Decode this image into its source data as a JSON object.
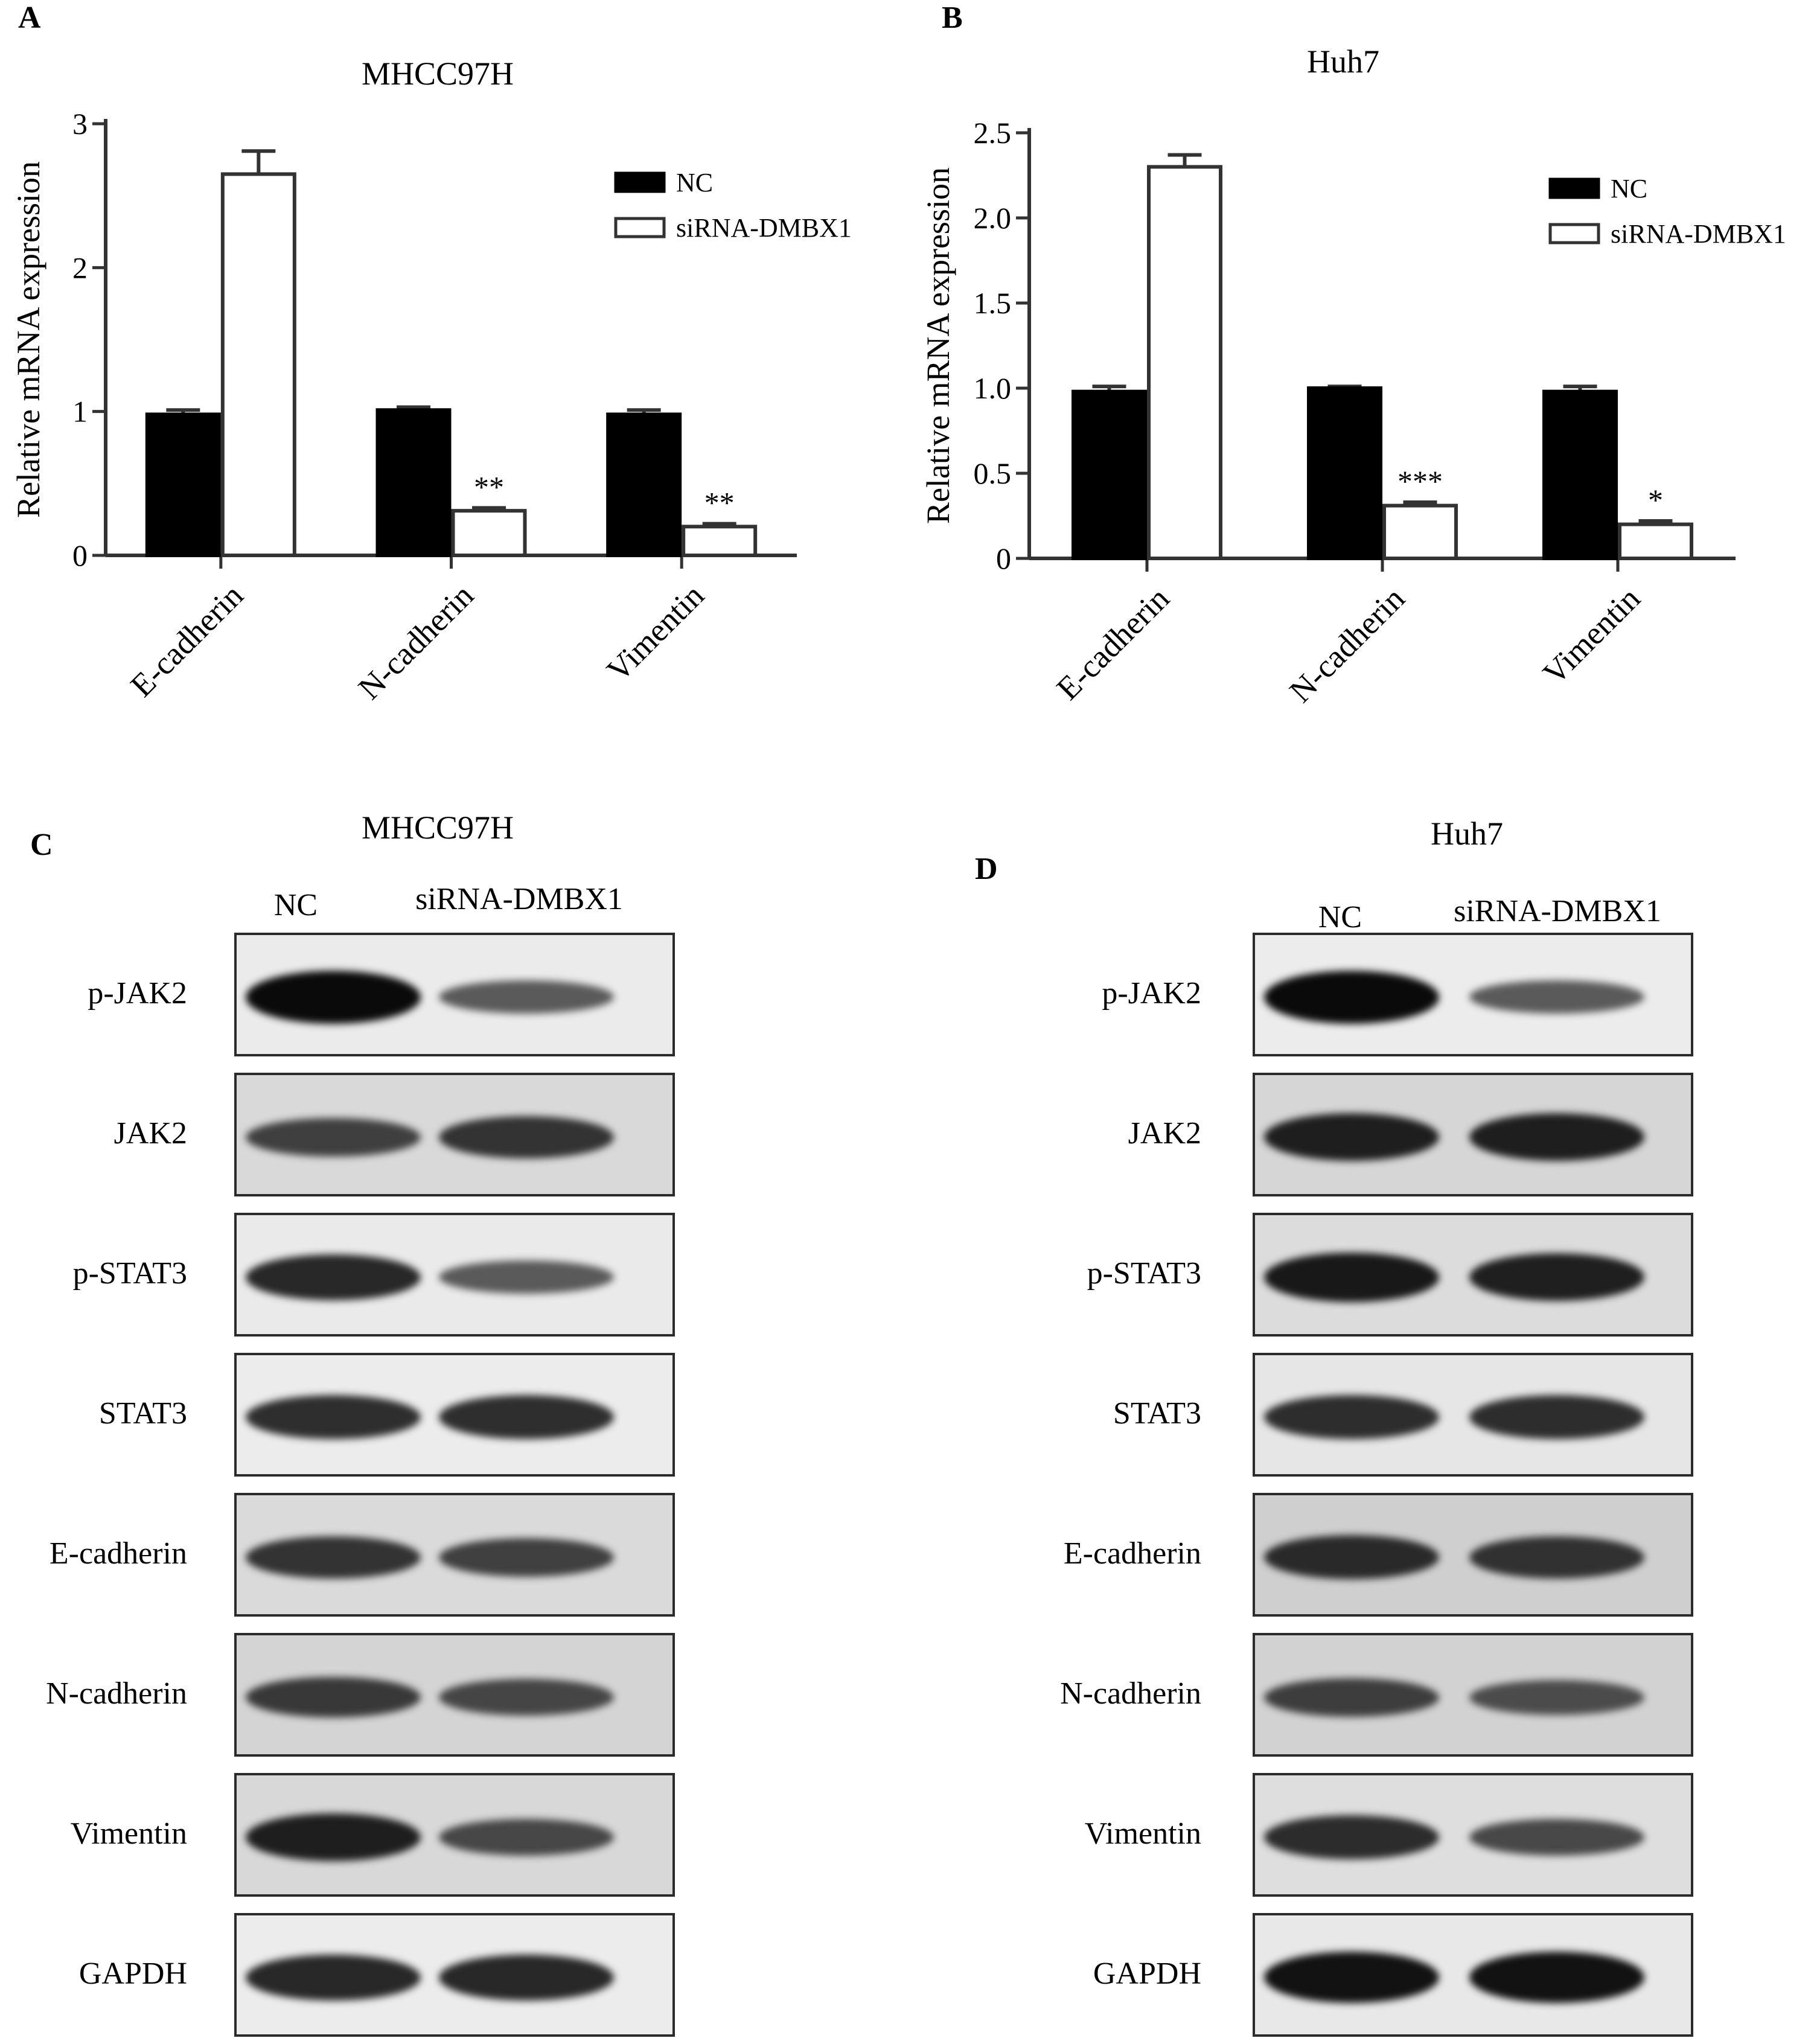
{
  "panels": {
    "A": {
      "letter": "A"
    },
    "B": {
      "letter": "B"
    },
    "C": {
      "letter": "C"
    },
    "D": {
      "letter": "D"
    }
  },
  "chart_data": [
    {
      "panel": "A",
      "type": "bar",
      "title": "MHCC97H",
      "ylabel": "Relative mRNA expression",
      "xlabel": "",
      "ylim": [
        0,
        3
      ],
      "yticks": [
        "0",
        "1",
        "2",
        "3"
      ],
      "categories": [
        "E-cadherin",
        "N-cadherin",
        "Vimentin"
      ],
      "series": [
        {
          "name": "NC",
          "fill": "#000000",
          "values": [
            0.98,
            1.01,
            0.98
          ],
          "errors": [
            0.03,
            0.02,
            0.03
          ]
        },
        {
          "name": "siRNA-DMBX1",
          "fill": "#ffffff",
          "values": [
            2.65,
            0.31,
            0.2
          ],
          "errors": [
            0.16,
            0.02,
            0.02
          ]
        }
      ],
      "annotations": [
        "",
        "**",
        "**"
      ],
      "legend": "top-right"
    },
    {
      "panel": "B",
      "type": "bar",
      "title": "Huh7",
      "ylabel": "Relative mRNA expression",
      "xlabel": "",
      "ylim": [
        0,
        2.5
      ],
      "yticks": [
        "0",
        "0.5",
        "1.0",
        "1.5",
        "2.0",
        "2.5"
      ],
      "categories": [
        "E-cadherin",
        "N-cadherin",
        "Vimentin"
      ],
      "series": [
        {
          "name": "NC",
          "fill": "#000000",
          "values": [
            0.98,
            1.0,
            0.98
          ],
          "errors": [
            0.03,
            0.01,
            0.03
          ]
        },
        {
          "name": "siRNA-DMBX1",
          "fill": "#ffffff",
          "values": [
            2.3,
            0.31,
            0.2
          ],
          "errors": [
            0.07,
            0.02,
            0.02
          ]
        }
      ],
      "annotations": [
        "",
        "***",
        "*"
      ],
      "legend": "top-right"
    }
  ],
  "blots": {
    "C": {
      "title": "MHCC97H",
      "lanes": [
        "NC",
        "siRNA-DMBX1"
      ],
      "rows": [
        {
          "label": "p-JAK2",
          "nc": 1.0,
          "si": 0.45,
          "bg": "#ebebeb"
        },
        {
          "label": "JAK2",
          "nc": 0.6,
          "si": 0.7,
          "bg": "#d9d9d9"
        },
        {
          "label": "p-STAT3",
          "nc": 0.8,
          "si": 0.45,
          "bg": "#eaeaea"
        },
        {
          "label": "STAT3",
          "nc": 0.75,
          "si": 0.75,
          "bg": "#ececec"
        },
        {
          "label": "E-cadherin",
          "nc": 0.7,
          "si": 0.6,
          "bg": "#dadada"
        },
        {
          "label": "N-cadherin",
          "nc": 0.65,
          "si": 0.55,
          "bg": "#d4d4d4"
        },
        {
          "label": "Vimentin",
          "nc": 0.85,
          "si": 0.55,
          "bg": "#d8d8d8"
        },
        {
          "label": "GAPDH",
          "nc": 0.8,
          "si": 0.8,
          "bg": "#ececec"
        }
      ]
    },
    "D": {
      "title": "Huh7",
      "lanes": [
        "NC",
        "siRNA-DMBX1"
      ],
      "rows": [
        {
          "label": "p-JAK2",
          "nc": 1.0,
          "si": 0.45,
          "bg": "#ececec"
        },
        {
          "label": "JAK2",
          "nc": 0.85,
          "si": 0.85,
          "bg": "#d6d6d6"
        },
        {
          "label": "p-STAT3",
          "nc": 0.9,
          "si": 0.85,
          "bg": "#dcdcdc"
        },
        {
          "label": "STAT3",
          "nc": 0.75,
          "si": 0.75,
          "bg": "#e6e6e6"
        },
        {
          "label": "E-cadherin",
          "nc": 0.75,
          "si": 0.7,
          "bg": "#cfcfcf"
        },
        {
          "label": "N-cadherin",
          "nc": 0.6,
          "si": 0.5,
          "bg": "#d2d2d2"
        },
        {
          "label": "Vimentin",
          "nc": 0.75,
          "si": 0.55,
          "bg": "#dedede"
        },
        {
          "label": "GAPDH",
          "nc": 0.95,
          "si": 0.95,
          "bg": "#e8e8e8"
        }
      ]
    }
  }
}
